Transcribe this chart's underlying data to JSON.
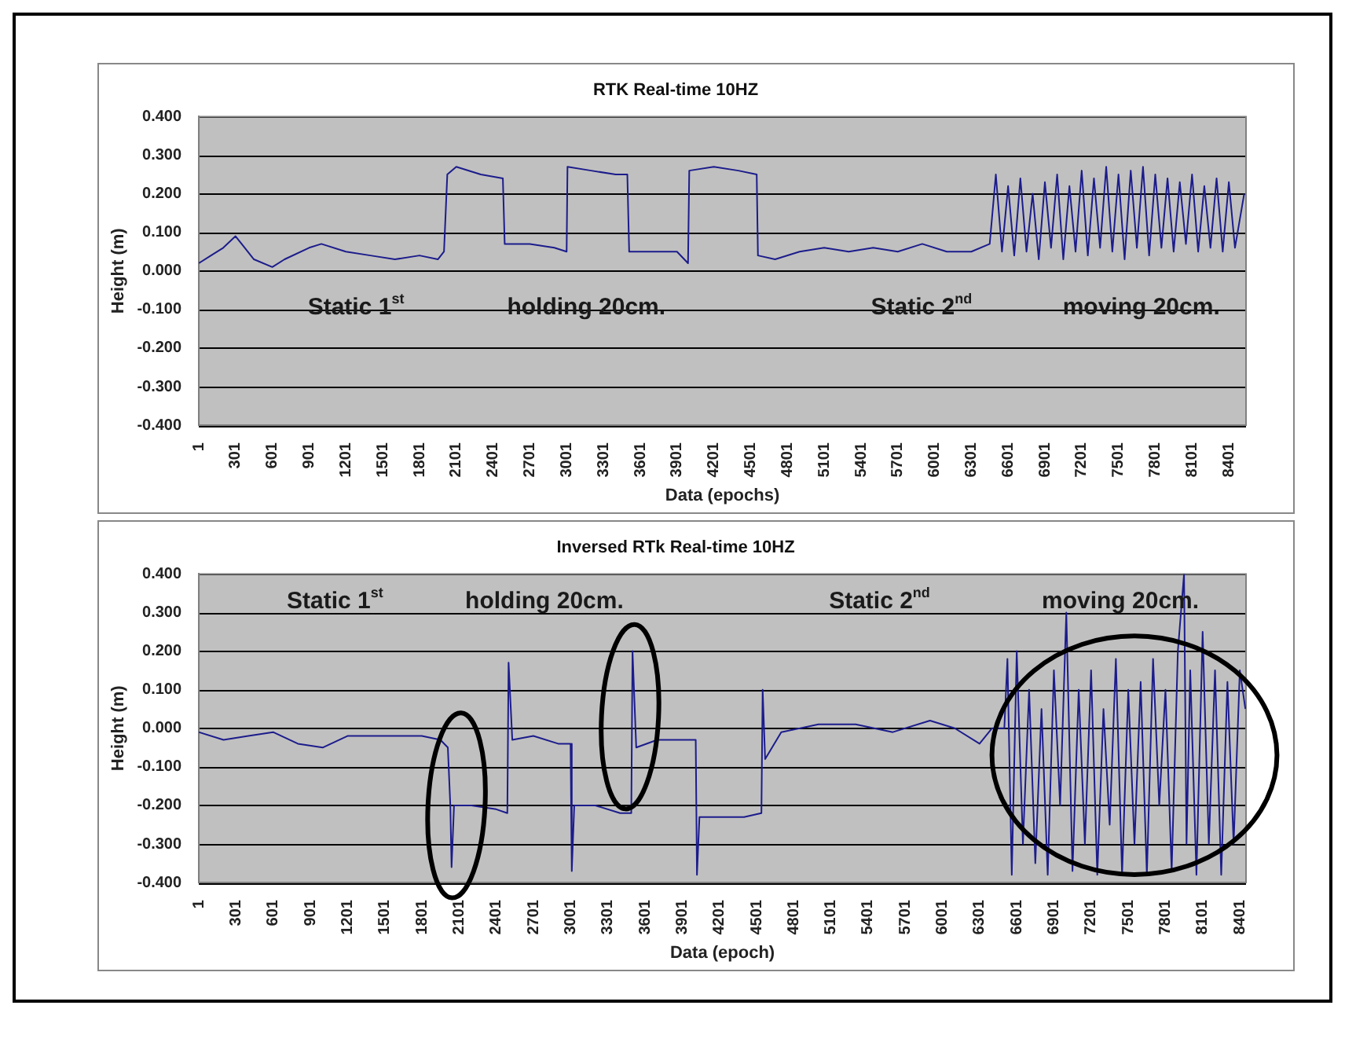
{
  "chart_data": [
    {
      "type": "line",
      "title": "RTK Real-time 10HZ",
      "xlabel": "Data (epochs)",
      "ylabel": "Height (m)",
      "grid": "y",
      "legend": false,
      "marker": "none",
      "line_style": "solid",
      "xlim": [
        1,
        8540
      ],
      "xticks": [
        1,
        301,
        601,
        901,
        1201,
        1501,
        1801,
        2101,
        2401,
        2701,
        3001,
        3301,
        3601,
        3901,
        4201,
        4501,
        4801,
        5101,
        5401,
        5701,
        6001,
        6301,
        6601,
        6901,
        7201,
        7501,
        7801,
        8101,
        8401
      ],
      "ylim": [
        -0.4,
        0.4
      ],
      "yticks": [
        {
          "value": -0.4,
          "label": "-0.400"
        },
        {
          "value": -0.3,
          "label": "-0.300"
        },
        {
          "value": -0.2,
          "label": "-0.200"
        },
        {
          "value": -0.1,
          "label": "-0.100"
        },
        {
          "value": 0,
          "label": "0.000"
        },
        {
          "value": 0.1,
          "label": "0.100"
        },
        {
          "value": 0.2,
          "label": "0.200"
        },
        {
          "value": 0.3,
          "label": "0.300"
        },
        {
          "value": 0.4,
          "label": "0.400"
        }
      ],
      "annotations": [
        "Static 1$^{st}$",
        "holding 20cm.",
        "Static 2$^{nd}$",
        "moving 20cm."
      ],
      "series": [
        {
          "color": "#1c1c8c",
          "x": [
            1,
            100,
            200,
            300,
            350,
            450,
            600,
            700,
            900,
            1000,
            1200,
            1400,
            1600,
            1800,
            1950,
            2000,
            2027,
            2100,
            2300,
            2480,
            2495,
            2700,
            2900,
            3000,
            3007,
            3200,
            3400,
            3495,
            3510,
            3700,
            3900,
            3990,
            4000,
            4200,
            4400,
            4550,
            4560,
            4700,
            4900,
            5100,
            5300,
            5500,
            5700,
            5900,
            6100,
            6300,
            6450,
            6500,
            6550,
            6600,
            6650,
            6700,
            6750,
            6800,
            6850,
            6900,
            6950,
            7000,
            7050,
            7100,
            7150,
            7200,
            7250,
            7300,
            7350,
            7400,
            7450,
            7500,
            7550,
            7600,
            7650,
            7700,
            7750,
            7800,
            7850,
            7900,
            7950,
            8000,
            8050,
            8100,
            8150,
            8200,
            8250,
            8300,
            8350,
            8400,
            8450,
            8525
          ],
          "values": [
            0.02,
            0.04,
            0.06,
            0.09,
            0.07,
            0.03,
            0.01,
            0.03,
            0.06,
            0.07,
            0.05,
            0.04,
            0.03,
            0.04,
            0.03,
            0.05,
            0.25,
            0.27,
            0.25,
            0.24,
            0.07,
            0.07,
            0.06,
            0.05,
            0.27,
            0.26,
            0.25,
            0.25,
            0.05,
            0.05,
            0.05,
            0.02,
            0.26,
            0.27,
            0.26,
            0.25,
            0.04,
            0.03,
            0.05,
            0.06,
            0.05,
            0.06,
            0.05,
            0.07,
            0.05,
            0.05,
            0.07,
            0.25,
            0.05,
            0.22,
            0.04,
            0.24,
            0.05,
            0.2,
            0.03,
            0.23,
            0.06,
            0.25,
            0.03,
            0.22,
            0.05,
            0.26,
            0.04,
            0.24,
            0.06,
            0.27,
            0.05,
            0.25,
            0.03,
            0.26,
            0.06,
            0.27,
            0.04,
            0.25,
            0.06,
            0.24,
            0.05,
            0.23,
            0.07,
            0.25,
            0.05,
            0.22,
            0.06,
            0.24,
            0.05,
            0.23,
            0.06,
            0.2
          ]
        }
      ]
    },
    {
      "type": "line",
      "title": "Inversed RTk Real-time 10HZ",
      "xlabel": "Data (epoch)",
      "ylabel": "Height (m)",
      "grid": "y",
      "legend": false,
      "marker": "none",
      "line_style": "solid",
      "xlim": [
        1,
        8450
      ],
      "xticks": [
        1,
        301,
        601,
        901,
        1201,
        1501,
        1801,
        2101,
        2401,
        2701,
        3001,
        3301,
        3601,
        3901,
        4201,
        4501,
        4801,
        5101,
        5401,
        5701,
        6001,
        6301,
        6601,
        6901,
        7201,
        7501,
        7801,
        8101,
        8401
      ],
      "ylim": [
        -0.4,
        0.4
      ],
      "yticks": [
        {
          "value": -0.4,
          "label": "-0.400"
        },
        {
          "value": -0.3,
          "label": "-0.300"
        },
        {
          "value": -0.2,
          "label": "-0.200"
        },
        {
          "value": -0.1,
          "label": "-0.100"
        },
        {
          "value": 0,
          "label": "0.000"
        },
        {
          "value": 0.1,
          "label": "0.100"
        },
        {
          "value": 0.2,
          "label": "0.200"
        },
        {
          "value": 0.3,
          "label": "0.300"
        },
        {
          "value": 0.4,
          "label": "0.400"
        }
      ],
      "annotations": [
        "Static 1$^{st}$",
        "holding 20cm.",
        "Static 2$^{nd}$",
        "moving 20cm."
      ],
      "series": [
        {
          "color": "#1c1c8c",
          "x": [
            1,
            200,
            400,
            600,
            800,
            1000,
            1200,
            1500,
            1800,
            1950,
            2010,
            2030,
            2040,
            2060,
            2200,
            2400,
            2490,
            2500,
            2530,
            2700,
            2900,
            3000,
            3010,
            3030,
            3200,
            3400,
            3490,
            3500,
            3530,
            3700,
            3900,
            4010,
            4020,
            4040,
            4200,
            4400,
            4540,
            4550,
            4570,
            4700,
            5000,
            5300,
            5600,
            5900,
            6100,
            6300,
            6400,
            6500,
            6525,
            6560,
            6600,
            6650,
            6700,
            6750,
            6800,
            6850,
            6900,
            6950,
            7000,
            7050,
            7100,
            7150,
            7200,
            7250,
            7300,
            7350,
            7400,
            7450,
            7500,
            7550,
            7600,
            7650,
            7700,
            7750,
            7800,
            7850,
            7900,
            7950,
            7970,
            8000,
            8050,
            8100,
            8150,
            8200,
            8250,
            8300,
            8350,
            8400,
            8445
          ],
          "values": [
            -0.01,
            -0.03,
            -0.02,
            -0.01,
            -0.04,
            -0.05,
            -0.02,
            -0.02,
            -0.02,
            -0.03,
            -0.05,
            -0.2,
            -0.36,
            -0.2,
            -0.2,
            -0.21,
            -0.22,
            0.17,
            -0.03,
            -0.02,
            -0.04,
            -0.04,
            -0.37,
            -0.2,
            -0.2,
            -0.22,
            -0.22,
            0.2,
            -0.05,
            -0.03,
            -0.03,
            -0.03,
            -0.38,
            -0.23,
            -0.23,
            -0.23,
            -0.22,
            0.1,
            -0.08,
            -0.01,
            0.01,
            0.01,
            -0.01,
            0.02,
            0,
            -0.04,
            0,
            0,
            0.18,
            -0.38,
            0.2,
            -0.3,
            0.1,
            -0.35,
            0.05,
            -0.38,
            0.15,
            -0.2,
            0.3,
            -0.37,
            0.1,
            -0.3,
            0.15,
            -0.38,
            0.05,
            -0.25,
            0.18,
            -0.38,
            0.1,
            -0.3,
            0.12,
            -0.38,
            0.18,
            -0.2,
            0.1,
            -0.37,
            0.2,
            0.4,
            -0.3,
            0.15,
            -0.38,
            0.25,
            -0.3,
            0.15,
            -0.38,
            0.12,
            -0.3,
            0.15,
            0.05
          ]
        }
      ]
    }
  ]
}
